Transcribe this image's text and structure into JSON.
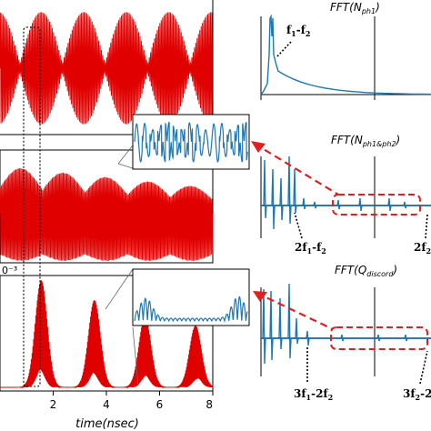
{
  "chart_data": [
    {
      "type": "line",
      "panel": "top-left",
      "series": [
        {
          "color": "#e00000",
          "x": [
            0,
            8
          ],
          "envelope_peaks_x": [
            1.55,
            3.15,
            4.75,
            6.35,
            7.9
          ]
        }
      ],
      "xlim": [
        0,
        8
      ]
    },
    {
      "type": "line",
      "panel": "middle-left",
      "series": [
        {
          "color": "#e00000"
        }
      ],
      "inset": {
        "color": "#1f77b4"
      },
      "xlim": [
        0,
        8
      ]
    },
    {
      "type": "line",
      "panel": "bottom-left",
      "offset_label": "0⁻³",
      "series": [
        {
          "color": "#e00000",
          "peaks_x": [
            1.55,
            3.55,
            5.45,
            7.35
          ]
        }
      ],
      "inset": {
        "color": "#1f77b4"
      },
      "xlabel": "time(nsec)",
      "xticks": [
        "2",
        "4",
        "6",
        "8"
      ],
      "xlim": [
        0,
        8
      ]
    },
    {
      "type": "line",
      "panel": "right-1",
      "title": "FFT(Nph1)",
      "series": [
        {
          "color": "#1f77b4"
        }
      ],
      "annotations": [
        "f1-f2"
      ]
    },
    {
      "type": "line",
      "panel": "right-2",
      "title": "FFT(Nph1&ph2)",
      "series": [
        {
          "color": "#1f77b4"
        }
      ],
      "annotations": [
        "2f1-f2",
        "2f2"
      ]
    },
    {
      "type": "line",
      "panel": "right-3",
      "title": "FFT(Qdiscord)",
      "series": [
        {
          "color": "#1f77b4"
        }
      ],
      "annotations": [
        "3f1-2f2",
        "3f2-2"
      ]
    }
  ],
  "labels": {
    "xlabel": "time(nsec)",
    "xticks": [
      "2",
      "4",
      "6",
      "8"
    ],
    "offset": "0⁻³",
    "fft1_title_pre": "FFT(",
    "fft1_title_sym": "N",
    "fft1_title_sub": "ph1",
    "fft1_title_post": ")",
    "fft2_title_pre": "FFT(",
    "fft2_title_sym": "N",
    "fft2_title_sub": "ph1&ph2",
    "fft2_title_post": ")",
    "fft3_title_pre": "FFT(",
    "fft3_title_sym": "Q",
    "fft3_title_sub": "discord",
    "fft3_title_post": ")",
    "ann_f1": "f",
    "ann_f1_sub1": "1",
    "ann_f1_mid": "-f",
    "ann_f1_sub2": "2",
    "ann_2f1_pre": "2f",
    "ann_2f1_sub1": "1",
    "ann_2f1_mid": "-f",
    "ann_2f1_sub2": "2",
    "ann_2f2_pre": "2f",
    "ann_2f2_sub": "2",
    "ann_3f1_pre": "3f",
    "ann_3f1_sub1": "1",
    "ann_3f1_mid": "-2f",
    "ann_3f1_sub2": "2",
    "ann_3f2_pre": "3f",
    "ann_3f2_sub1": "2",
    "ann_3f2_mid": "-2"
  },
  "colors": {
    "red": "#e00000",
    "blue": "#1f77b4",
    "dashed_red": "#e02020"
  }
}
